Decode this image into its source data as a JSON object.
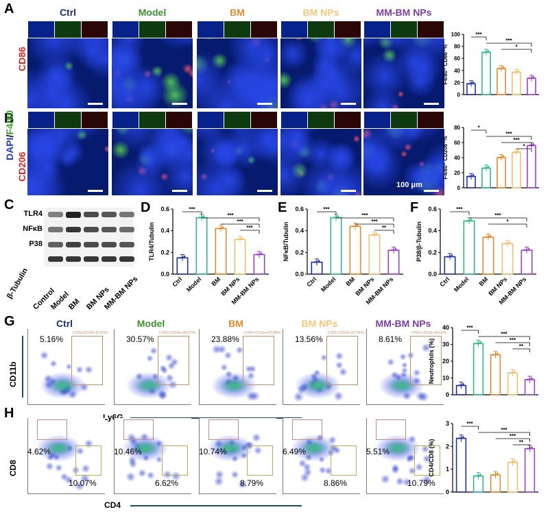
{
  "panel_letters": {
    "A": "A",
    "B": "B",
    "C": "C",
    "D": "D",
    "E": "E",
    "F": "F",
    "G": "G",
    "H": "H"
  },
  "groups": [
    "Ctrl",
    "Model",
    "BM",
    "BM NPs",
    "MM-BM NPs"
  ],
  "group_colors": [
    "#1f2fa8",
    "#2fb88c",
    "#e58a2e",
    "#f0c070",
    "#9b3fcf"
  ],
  "header_colors": [
    "#1e2f6e",
    "#3f8f2f",
    "#e58a2e",
    "#f2c87a",
    "#7a3fa0"
  ],
  "row_labels": {
    "cd86": "CD86",
    "dapi": "DAPI",
    "slash": "/",
    "f480": "F4/80",
    "cd206": "CD206"
  },
  "scale_bar": "100 μm",
  "western": {
    "bands": [
      "TLR4",
      "NFκB",
      "P38",
      "β-Tubulin"
    ],
    "lanes": [
      "Control",
      "Model",
      "BM",
      "BM NPs",
      "MM-BM NPs"
    ]
  },
  "flow_g": {
    "y_axis": "CD11b",
    "x_axis": "Ly6G",
    "percents": [
      "5.16%",
      "30.57%",
      "23.88%",
      "13.56%",
      "8.61%"
    ],
    "gate_labels": [
      "LY6G+CD11b+(5.16%)",
      "LY6G+CD11b+(30.57%)",
      "LY6G+CD11b+(23.88%)",
      "LY6G+CD11b+(13.56%)",
      "LY6G+CD11b+(8.61%)"
    ]
  },
  "flow_h": {
    "y_axis": "CD8",
    "x_axis": "CD4",
    "cd8_percents": [
      "4.62%",
      "10.46%",
      "10.74%",
      "6.49%",
      "5.51%"
    ],
    "cd4_percents": [
      "10.07%",
      "6.62%",
      "8.79%",
      "8.86%",
      "10.79%"
    ]
  },
  "chart_data": [
    {
      "id": "A",
      "type": "bar",
      "ylabel": "F4/80⁺ CD86⁺%",
      "ylim": [
        0,
        100
      ],
      "yticks": [
        0,
        20,
        40,
        60,
        80,
        100
      ],
      "categories": [
        "Ctrl",
        "Model",
        "BM",
        "BM NPs",
        "MM-BM NPs"
      ],
      "values": [
        18,
        70,
        43,
        37,
        27
      ],
      "significance": [
        "***",
        "***",
        "*"
      ]
    },
    {
      "id": "B",
      "type": "bar",
      "ylabel": "F4/80⁺ CD206⁺%",
      "ylim": [
        0,
        80
      ],
      "yticks": [
        0,
        20,
        40,
        60,
        80
      ],
      "categories": [
        "Ctrl",
        "Model",
        "BM",
        "BM NPs",
        "MM-BM NPs"
      ],
      "values": [
        15,
        26,
        40,
        47,
        56
      ],
      "significance": [
        "*",
        "***",
        "***",
        "*"
      ]
    },
    {
      "id": "D",
      "type": "bar",
      "ylabel": "TLR4/Tubulin",
      "ylim": [
        0,
        0.6
      ],
      "yticks": [
        "0.0",
        "0.2",
        "0.4",
        "0.6"
      ],
      "categories": [
        "Ctrl",
        "Model",
        "BM",
        "BM NPs",
        "MM-BM NPs"
      ],
      "values": [
        0.15,
        0.52,
        0.42,
        0.32,
        0.18
      ],
      "significance": [
        "***",
        "***",
        "***",
        "***"
      ]
    },
    {
      "id": "E",
      "type": "bar",
      "ylabel": "NFκB/Tubulin",
      "ylim": [
        0,
        0.6
      ],
      "yticks": [
        "0.0",
        "0.2",
        "0.4",
        "0.6"
      ],
      "categories": [
        "Ctrl",
        "Model",
        "BM",
        "BM NPs",
        "MM-BM NPs"
      ],
      "values": [
        0.11,
        0.52,
        0.44,
        0.36,
        0.22
      ],
      "significance": [
        "***",
        "***",
        "***",
        "**"
      ]
    },
    {
      "id": "F",
      "type": "bar",
      "ylabel": "P38/β-Tubulin",
      "ylim": [
        0,
        0.6
      ],
      "yticks": [
        "0.0",
        "0.2",
        "0.4",
        "0.6"
      ],
      "categories": [
        "Ctrl",
        "Model",
        "BM",
        "BM NPs",
        "MM-BM NPs"
      ],
      "values": [
        0.16,
        0.49,
        0.34,
        0.28,
        0.22
      ],
      "significance": [
        "***",
        "***",
        "*"
      ]
    },
    {
      "id": "G",
      "type": "bar",
      "ylabel": "Neutrophils (%)",
      "ylim": [
        0,
        40
      ],
      "yticks": [
        0,
        10,
        20,
        30,
        40
      ],
      "categories": [
        "Ctrl",
        "Model",
        "BM",
        "BM NPs",
        "MM-BM NPs"
      ],
      "values": [
        5.5,
        30.5,
        23.8,
        13,
        9
      ],
      "significance": [
        "***",
        "***",
        "***",
        "**"
      ]
    },
    {
      "id": "H",
      "type": "bar",
      "ylabel": "CD4/CD8 (%)",
      "ylim": [
        0,
        3
      ],
      "yticks": [
        0,
        1,
        2,
        3
      ],
      "categories": [
        "Ctrl",
        "Model",
        "BM",
        "BM NPs",
        "MM-BM NPs"
      ],
      "values": [
        2.35,
        0.7,
        0.75,
        1.3,
        1.9
      ],
      "significance": [
        "***",
        "***",
        "***",
        "**"
      ]
    }
  ]
}
